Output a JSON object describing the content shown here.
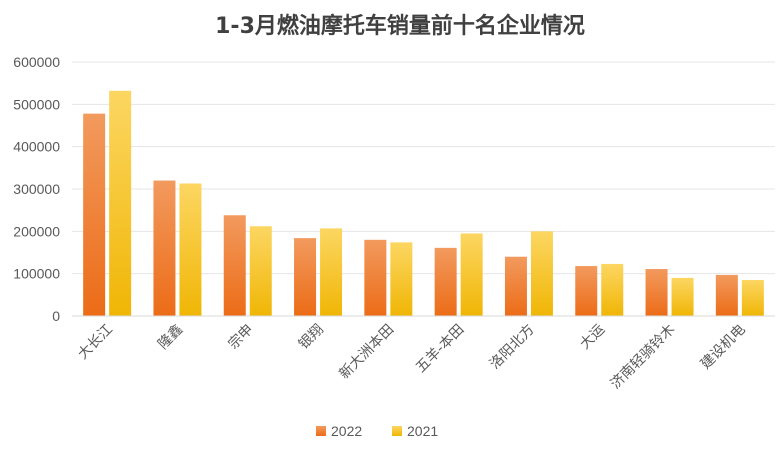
{
  "chart_data": {
    "type": "bar",
    "title": "1-3月燃油摩托车销量前十名企业情况",
    "xlabel": "",
    "ylabel": "",
    "categories": [
      "大长江",
      "隆鑫",
      "宗申",
      "银翔",
      "新大洲本田",
      "五羊-本田",
      "洛阳北方",
      "大运",
      "济南轻骑铃木",
      "建设机电"
    ],
    "series": [
      {
        "name": "2022",
        "values": [
          478000,
          320000,
          238000,
          184000,
          180000,
          161000,
          140000,
          118000,
          111000,
          97000
        ],
        "color_top": "#f29a5e",
        "color_bottom": "#ec6c17"
      },
      {
        "name": "2021",
        "values": [
          532000,
          313000,
          212000,
          207000,
          174000,
          195000,
          200000,
          123000,
          90000,
          85000
        ],
        "color_top": "#fcd662",
        "color_bottom": "#f0b605"
      }
    ],
    "ylim": [
      0,
      600000
    ],
    "yticks": [
      "0",
      "100000",
      "200000",
      "300000",
      "400000",
      "500000",
      "600000"
    ],
    "grid": true,
    "legend_position": "bottom"
  }
}
